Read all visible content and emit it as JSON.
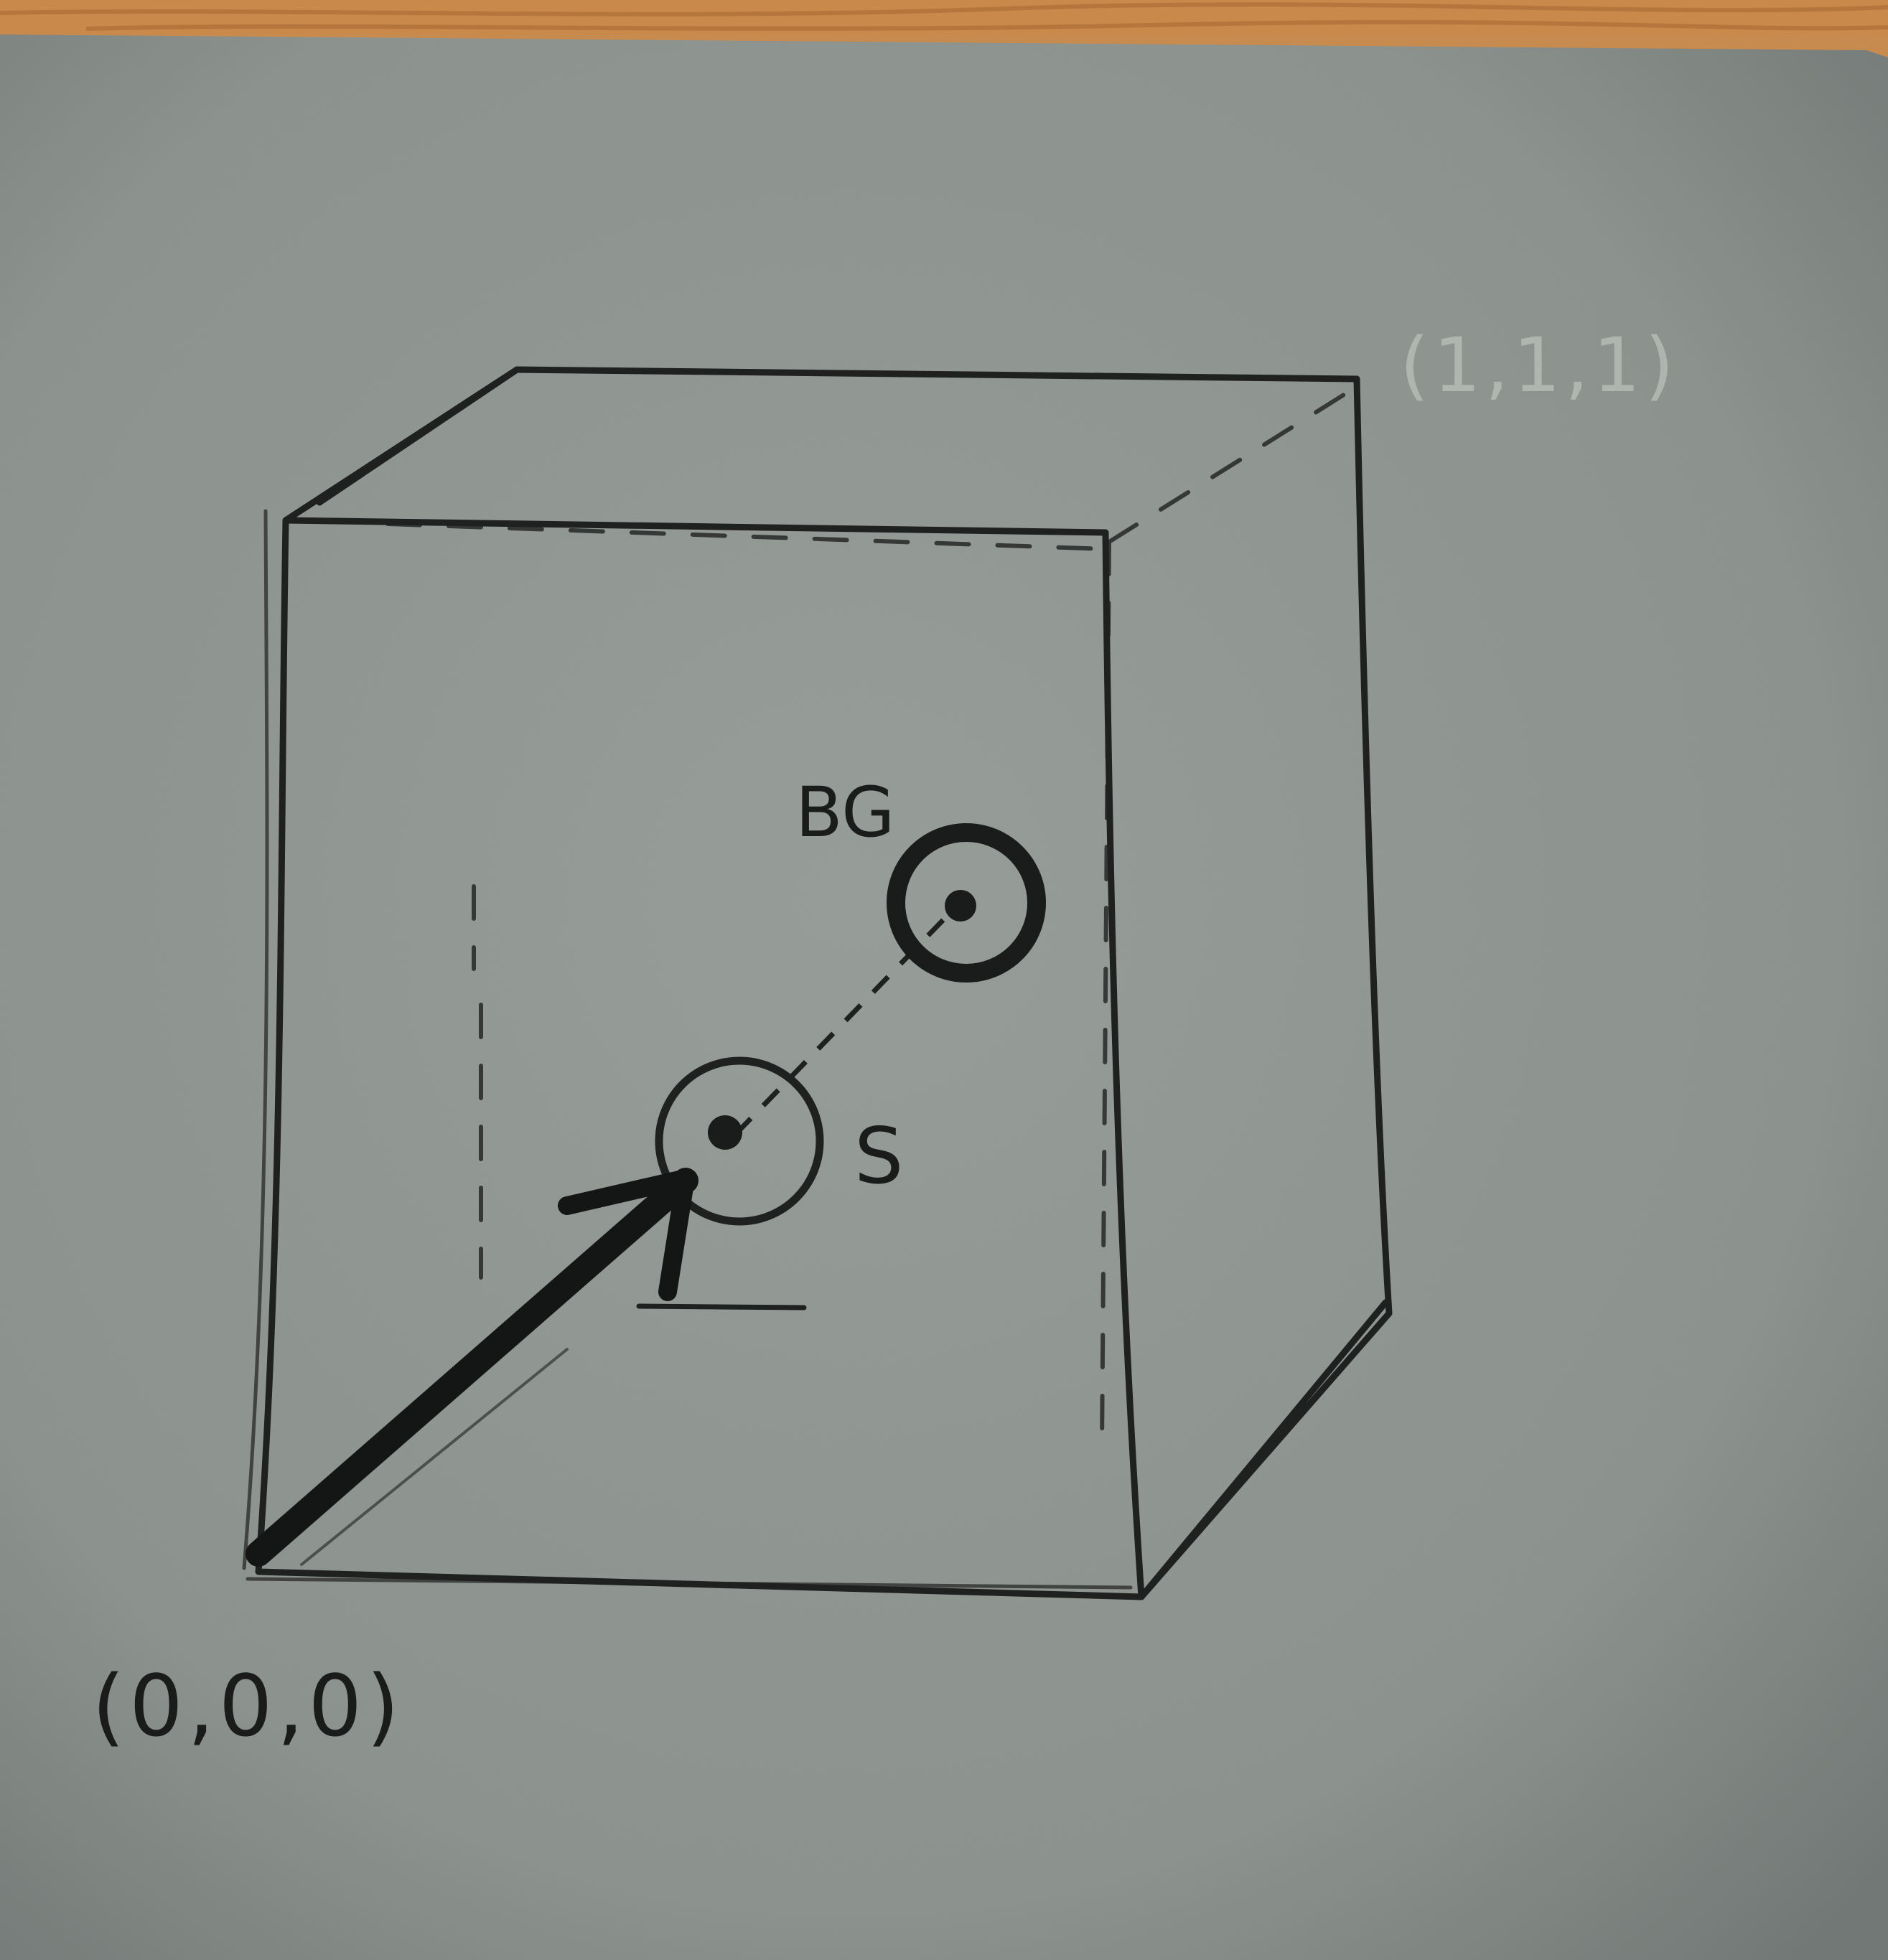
{
  "labels": {
    "origin": "(0,0,0)",
    "far_corner": "(1,1,1)",
    "bg_point": "BG",
    "s_point": "S"
  },
  "colors": {
    "table": "#c8894a",
    "paper": "#8d9390",
    "pencil": "#1a1c1b",
    "faint_pencil": "#b7bbb5"
  },
  "icons": {
    "bg_marker": "circled-dot",
    "s_marker": "circled-dot",
    "origin_arrow": "arrow"
  }
}
